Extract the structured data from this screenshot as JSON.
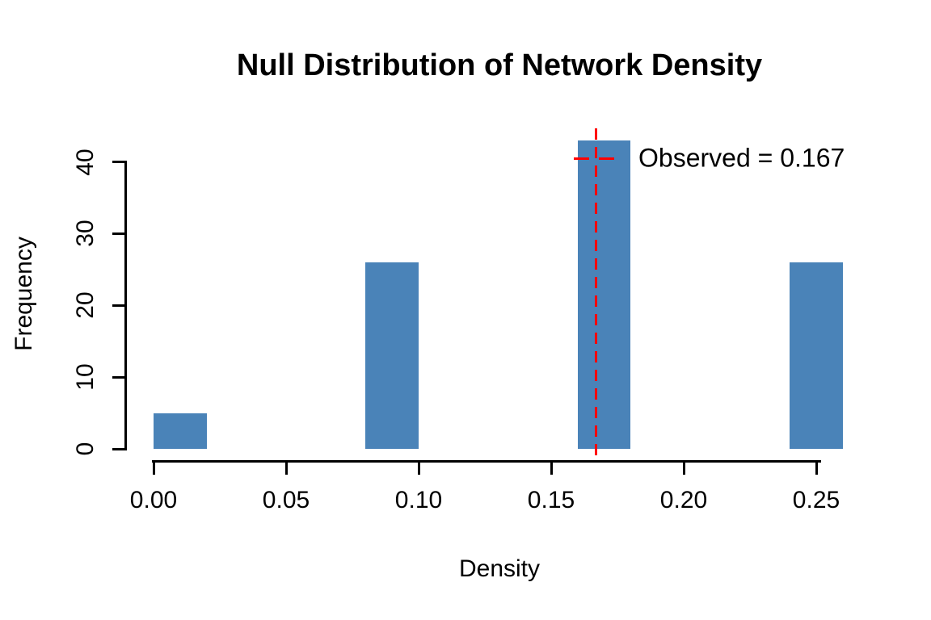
{
  "figure": {
    "title": "Null Distribution of Network Density"
  },
  "chart_data": {
    "type": "bar",
    "subtype": "histogram",
    "title": "Null Distribution of Network Density",
    "xlabel": "Density",
    "ylabel": "Frequency",
    "bin_width": 0.02,
    "bars": [
      {
        "x0": 0.0,
        "x1": 0.02,
        "frequency": 5
      },
      {
        "x0": 0.08,
        "x1": 0.1,
        "frequency": 26
      },
      {
        "x0": 0.16,
        "x1": 0.18,
        "frequency": 43
      },
      {
        "x0": 0.24,
        "x1": 0.26,
        "frequency": 26
      }
    ],
    "x_ticks": [
      {
        "value": 0.0,
        "label": "0.00"
      },
      {
        "value": 0.05,
        "label": "0.05"
      },
      {
        "value": 0.1,
        "label": "0.10"
      },
      {
        "value": 0.15,
        "label": "0.15"
      },
      {
        "value": 0.2,
        "label": "0.20"
      },
      {
        "value": 0.25,
        "label": "0.25"
      }
    ],
    "y_ticks": [
      {
        "value": 0,
        "label": "0"
      },
      {
        "value": 10,
        "label": "10"
      },
      {
        "value": 20,
        "label": "20"
      },
      {
        "value": 30,
        "label": "30"
      },
      {
        "value": 40,
        "label": "40"
      }
    ],
    "xlim": [
      0,
      0.26
    ],
    "ylim": [
      0,
      43
    ],
    "grid": false,
    "observed_value": 0.167,
    "legend": {
      "position": "topright",
      "label": "Observed = 0.167",
      "line_style": "dashed"
    },
    "colors": {
      "bar": "#4A83B8",
      "observed_line": "#FF0000",
      "text": "#000000",
      "background": "#FFFFFF"
    }
  }
}
